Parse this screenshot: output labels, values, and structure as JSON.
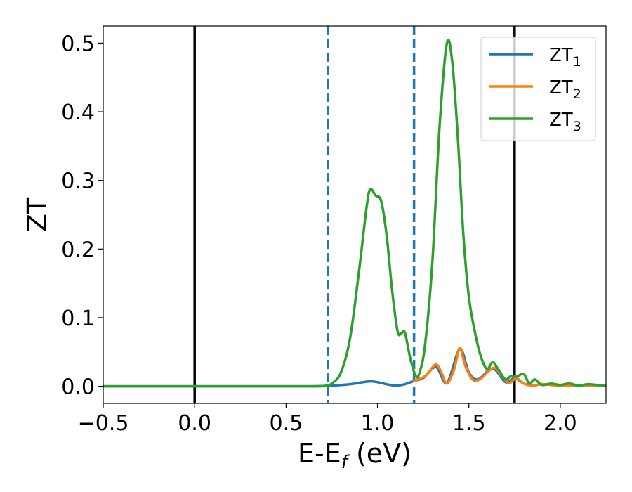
{
  "chart_data": {
    "type": "line",
    "xlabel": "E-E",
    "xlabel_sub": "f",
    "xlabel_unit": " (eV)",
    "ylabel": "ZT",
    "xlim": [
      -0.5,
      2.25
    ],
    "ylim": [
      -0.025,
      0.525
    ],
    "xticks": [
      -0.5,
      0.0,
      0.5,
      1.0,
      1.5,
      2.0
    ],
    "xtick_labels": [
      "−0.5",
      "0.0",
      "0.5",
      "1.0",
      "1.5",
      "2.0"
    ],
    "yticks": [
      0.0,
      0.1,
      0.2,
      0.3,
      0.4,
      0.5
    ],
    "ytick_labels": [
      "0.0",
      "0.1",
      "0.2",
      "0.3",
      "0.4",
      "0.5"
    ],
    "grid": false,
    "legend_position": "top-right",
    "vlines": [
      {
        "x": 0.0,
        "style": "solid",
        "color": "#000000"
      },
      {
        "x": 0.73,
        "style": "dashed",
        "color": "#1f77b4"
      },
      {
        "x": 1.2,
        "style": "dashed",
        "color": "#1f77b4"
      },
      {
        "x": 1.75,
        "style": "solid",
        "color": "#000000"
      }
    ],
    "series": [
      {
        "name": "ZT",
        "sub": "1",
        "color": "#1f77b4",
        "points": [
          [
            -0.5,
            0
          ],
          [
            0.5,
            0
          ],
          [
            0.65,
            0
          ],
          [
            0.75,
            0.001
          ],
          [
            0.85,
            0.003
          ],
          [
            0.95,
            0.007
          ],
          [
            1.0,
            0.006
          ],
          [
            1.05,
            0.003
          ],
          [
            1.1,
            0.001
          ],
          [
            1.15,
            0.003
          ],
          [
            1.2,
            0.008
          ],
          [
            1.25,
            0.012
          ],
          [
            1.32,
            0.028
          ],
          [
            1.38,
            0.005
          ],
          [
            1.45,
            0.054
          ],
          [
            1.5,
            0.02
          ],
          [
            1.55,
            0.01
          ],
          [
            1.63,
            0.026
          ],
          [
            1.7,
            0.006
          ],
          [
            1.75,
            0.012
          ],
          [
            1.8,
            0.004
          ],
          [
            1.85,
            0.001
          ],
          [
            1.9,
            0.003
          ],
          [
            2.0,
            0.001
          ],
          [
            2.1,
            0.001
          ],
          [
            2.25,
            0.001
          ]
        ]
      },
      {
        "name": "ZT",
        "sub": "2",
        "color": "#ff7f0e",
        "points": [
          [
            1.2,
            0.008
          ],
          [
            1.25,
            0.013
          ],
          [
            1.28,
            0.02
          ],
          [
            1.32,
            0.032
          ],
          [
            1.35,
            0.02
          ],
          [
            1.38,
            0.004
          ],
          [
            1.42,
            0.025
          ],
          [
            1.45,
            0.056
          ],
          [
            1.48,
            0.03
          ],
          [
            1.52,
            0.01
          ],
          [
            1.56,
            0.01
          ],
          [
            1.6,
            0.02
          ],
          [
            1.64,
            0.027
          ],
          [
            1.68,
            0.015
          ],
          [
            1.72,
            0.005
          ],
          [
            1.76,
            0.012
          ],
          [
            1.8,
            0.004
          ],
          [
            1.85,
            0.001
          ],
          [
            1.9,
            0.003
          ],
          [
            2.0,
            0.001
          ],
          [
            2.25,
            0.001
          ]
        ]
      },
      {
        "name": "ZT",
        "sub": "3",
        "color": "#2ca02c",
        "points": [
          [
            -0.5,
            0
          ],
          [
            0.5,
            0
          ],
          [
            0.68,
            0
          ],
          [
            0.72,
            0.001
          ],
          [
            0.75,
            0.004
          ],
          [
            0.8,
            0.02
          ],
          [
            0.85,
            0.07
          ],
          [
            0.9,
            0.17
          ],
          [
            0.94,
            0.26
          ],
          [
            0.96,
            0.287
          ],
          [
            0.99,
            0.278
          ],
          [
            1.02,
            0.27
          ],
          [
            1.05,
            0.22
          ],
          [
            1.08,
            0.14
          ],
          [
            1.11,
            0.08
          ],
          [
            1.13,
            0.077
          ],
          [
            1.15,
            0.078
          ],
          [
            1.18,
            0.04
          ],
          [
            1.21,
            0.015
          ],
          [
            1.23,
            0.02
          ],
          [
            1.26,
            0.06
          ],
          [
            1.3,
            0.18
          ],
          [
            1.34,
            0.38
          ],
          [
            1.38,
            0.5
          ],
          [
            1.41,
            0.47
          ],
          [
            1.44,
            0.36
          ],
          [
            1.47,
            0.22
          ],
          [
            1.5,
            0.13
          ],
          [
            1.54,
            0.07
          ],
          [
            1.57,
            0.04
          ],
          [
            1.6,
            0.025
          ],
          [
            1.63,
            0.035
          ],
          [
            1.66,
            0.025
          ],
          [
            1.7,
            0.01
          ],
          [
            1.73,
            0.015
          ],
          [
            1.76,
            0.014
          ],
          [
            1.8,
            0.018
          ],
          [
            1.83,
            0.004
          ],
          [
            1.86,
            0.01
          ],
          [
            1.9,
            0.002
          ],
          [
            1.95,
            0.004
          ],
          [
            2.0,
            0.002
          ],
          [
            2.05,
            0.004
          ],
          [
            2.1,
            0.001
          ],
          [
            2.15,
            0.003
          ],
          [
            2.2,
            0.002
          ],
          [
            2.25,
            0.001
          ]
        ]
      }
    ]
  }
}
